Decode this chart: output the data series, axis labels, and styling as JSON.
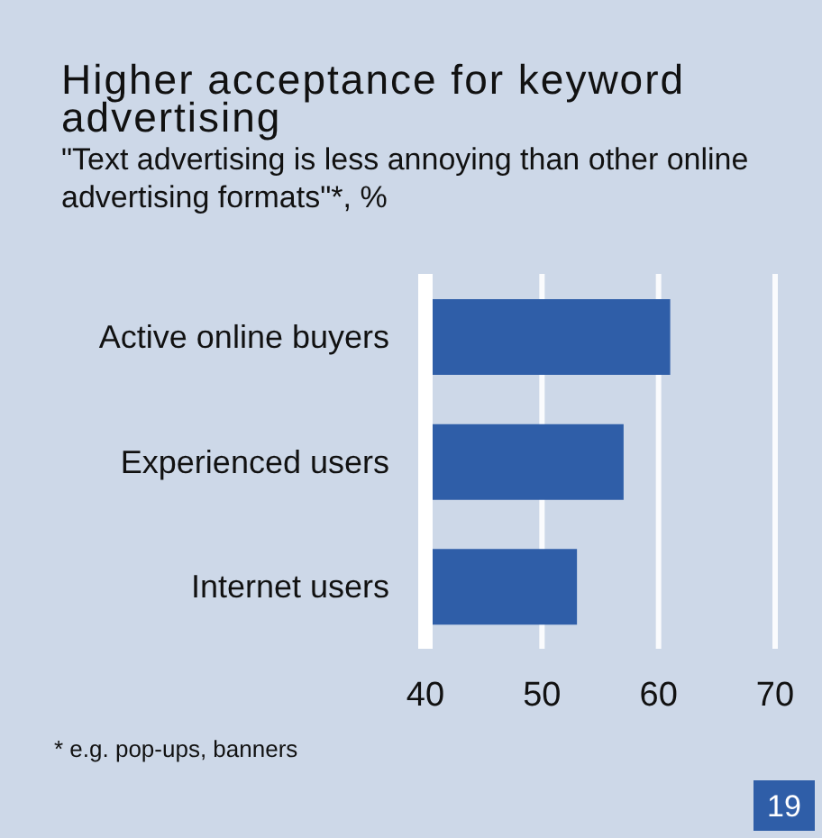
{
  "chart_data": {
    "type": "bar",
    "orientation": "horizontal",
    "title": "Higher acceptance for keyword advertising",
    "subtitle": "\"Text advertising is less annoying than other online advertising formats\"*, %",
    "categories": [
      "Active online buyers",
      "Experienced users",
      "Internet users"
    ],
    "values": [
      61,
      57,
      53
    ],
    "color": "#2f5ea8",
    "xlim": [
      40,
      70
    ],
    "xticks": [
      40,
      50,
      60,
      70
    ],
    "grid": "x",
    "annotations": [
      "* e.g. pop-ups, banners",
      "19"
    ]
  }
}
